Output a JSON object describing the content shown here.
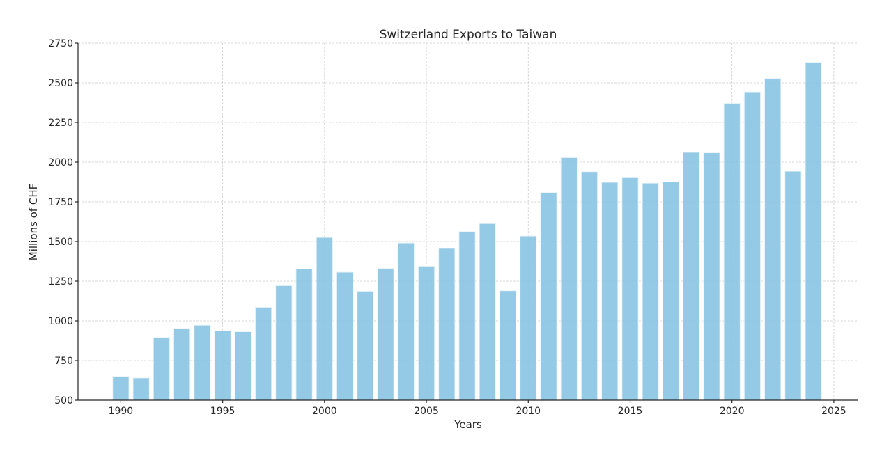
{
  "chart_data": {
    "type": "bar",
    "title": "Switzerland Exports to Taiwan",
    "xlabel": "Years",
    "ylabel": "Millions of CHF",
    "categories": [
      1990,
      1991,
      1992,
      1993,
      1994,
      1995,
      1996,
      1997,
      1998,
      1999,
      2000,
      2001,
      2002,
      2003,
      2004,
      2005,
      2006,
      2007,
      2008,
      2009,
      2010,
      2011,
      2012,
      2013,
      2014,
      2015,
      2016,
      2017,
      2018,
      2019,
      2020,
      2021,
      2022,
      2023,
      2024
    ],
    "values": [
      651,
      641,
      896,
      953,
      973,
      938,
      932,
      1086,
      1222,
      1328,
      1526,
      1307,
      1187,
      1331,
      1491,
      1345,
      1457,
      1563,
      1613,
      1190,
      1535,
      1809,
      2029,
      1940,
      1873,
      1902,
      1868,
      1875,
      2062,
      2059,
      2371,
      2443,
      2528,
      1943,
      2629
    ],
    "xlim": [
      1987.9,
      2026.2
    ],
    "ylim": [
      500,
      2750
    ],
    "xticks": [
      1990,
      1995,
      2000,
      2005,
      2010,
      2015,
      2020,
      2025
    ],
    "yticks": [
      500,
      750,
      1000,
      1250,
      1500,
      1750,
      2000,
      2250,
      2500,
      2750
    ],
    "grid": true,
    "bar_color": "#87c3e3",
    "legend": null
  }
}
